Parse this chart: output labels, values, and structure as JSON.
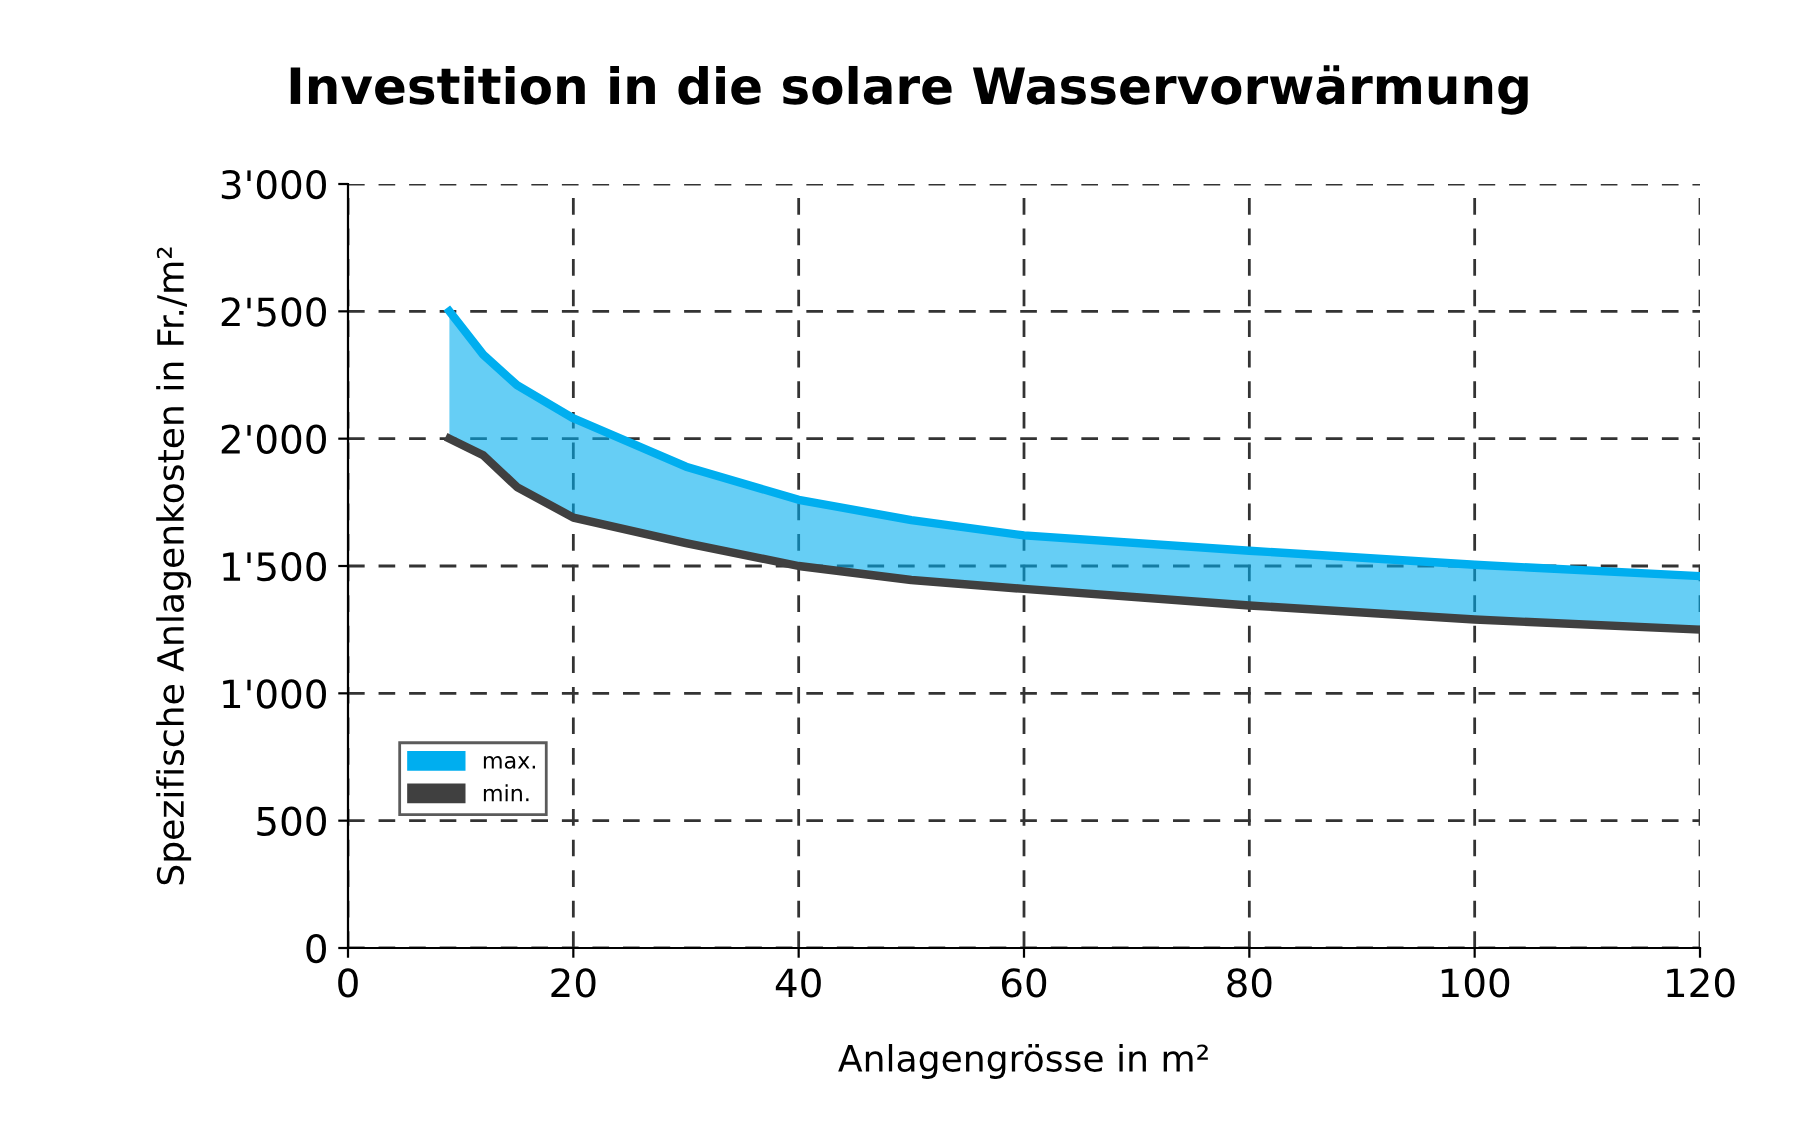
{
  "chart_data": {
    "type": "line",
    "title": "Investition in die solare Wasservorwärmung",
    "xlabel": "Anlagengrösse in m²",
    "ylabel": "Spezifische Anlagenkosten in Fr./m²",
    "x": [
      9,
      12,
      15,
      20,
      30,
      40,
      50,
      60,
      80,
      100,
      120
    ],
    "series": [
      {
        "name": "max.",
        "color": "#00aeef",
        "values": [
          2500,
          2330,
          2210,
          2080,
          1890,
          1760,
          1680,
          1620,
          1560,
          1505,
          1460
        ],
        "lower": [
          2000,
          1935,
          1810,
          1690,
          1590,
          1500,
          1445,
          1410,
          1345,
          1290,
          1250
        ],
        "upper": [
          2500,
          2330,
          2210,
          2080,
          1890,
          1760,
          1680,
          1620,
          1560,
          1505,
          1460
        ]
      },
      {
        "name": "min.",
        "color": "#404040",
        "values": [
          2000,
          1935,
          1810,
          1690,
          1590,
          1500,
          1445,
          1410,
          1345,
          1290,
          1250
        ]
      }
    ],
    "xlim": [
      0,
      120
    ],
    "xticks": [
      0,
      20,
      40,
      60,
      80,
      100,
      120
    ],
    "ylim": [
      0,
      3000
    ],
    "yticks": [
      0,
      500,
      {
        "value": 1000,
        "label": "1'000"
      },
      {
        "value": 1500,
        "label": "1'500"
      },
      {
        "value": 2000,
        "label": "2'000"
      },
      {
        "value": 2500,
        "label": "2'500"
      },
      {
        "value": 3000,
        "label": "3'000"
      }
    ],
    "grid": true,
    "legend": "bottom left",
    "marker": "none",
    "line_style": "solid"
  }
}
